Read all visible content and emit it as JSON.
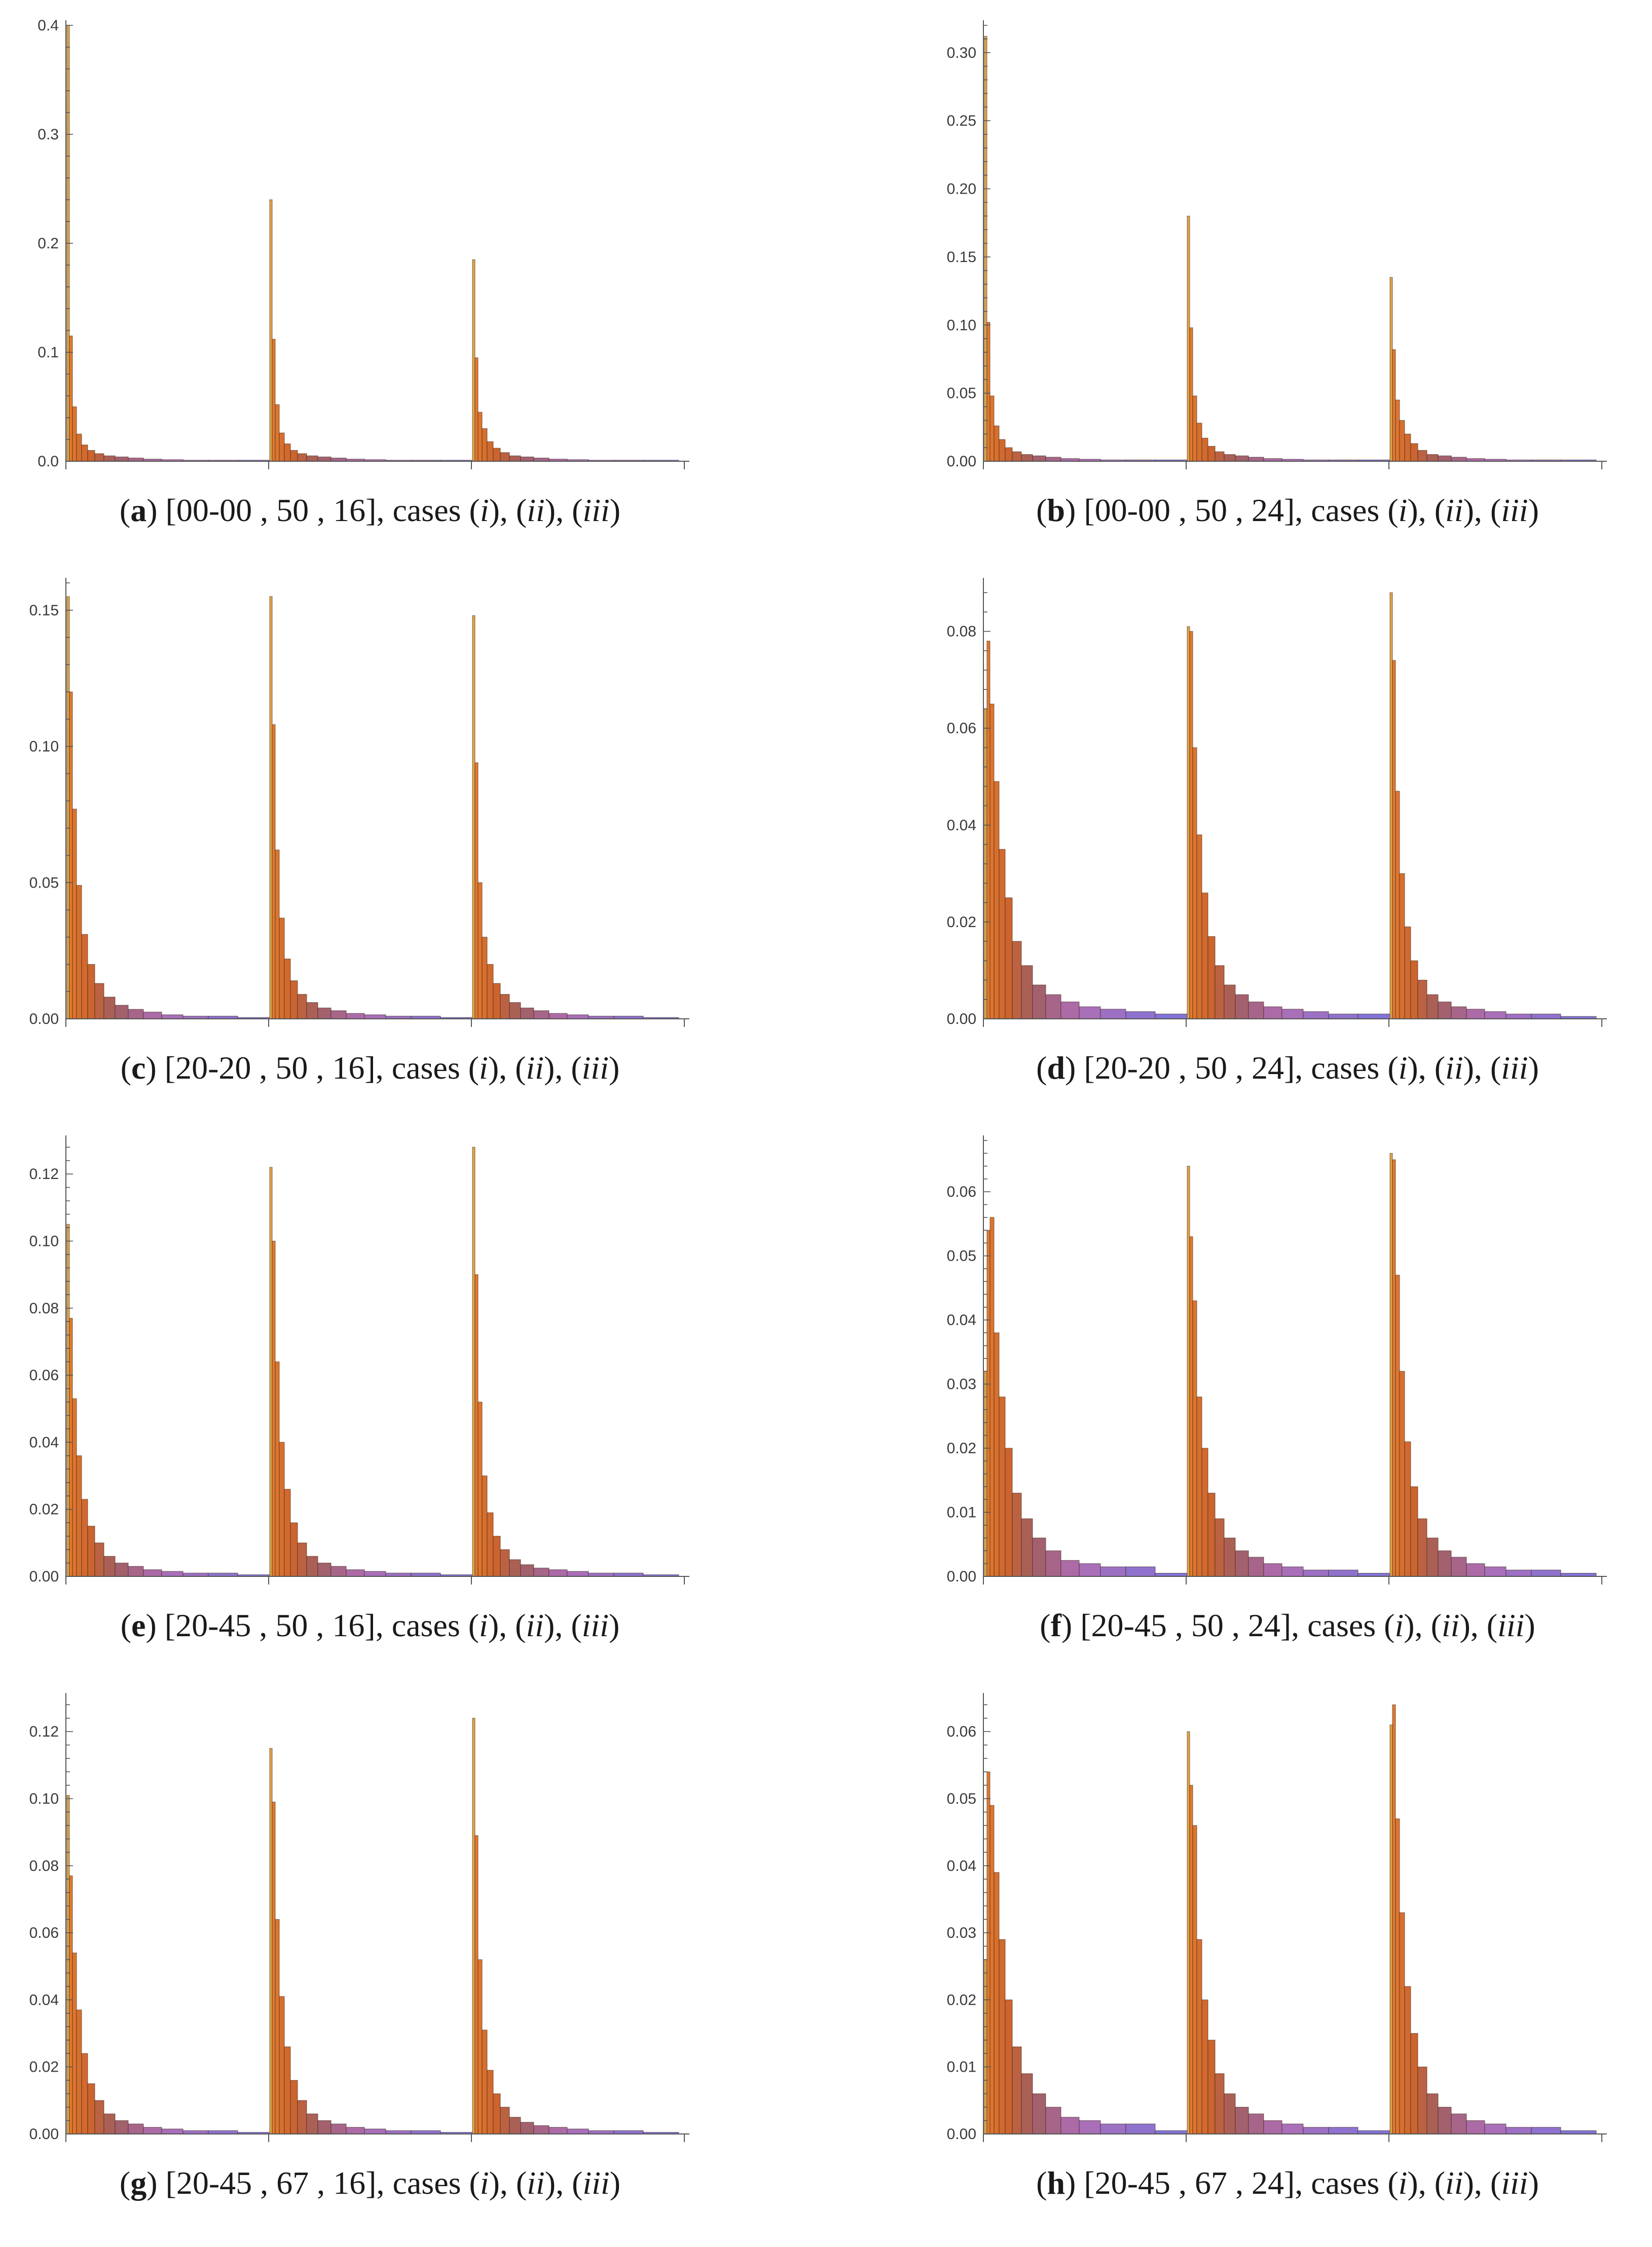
{
  "panels": [
    {
      "letter": "a",
      "spec": "[00-00 , 50 , 16], cases ",
      "cases": [
        "i",
        "ii",
        "iii"
      ],
      "chart_data": {
        "type": "bar",
        "ylim": [
          0,
          0.4
        ],
        "yticks": [
          "0.0",
          "0.1",
          "0.2",
          "0.3",
          "0.4"
        ],
        "ytick_values": [
          0,
          0.1,
          0.2,
          0.3,
          0.4
        ],
        "series": [
          {
            "values": [
              0.4,
              0.115,
              0.05,
              0.025,
              0.015,
              0.01,
              0.007,
              0.005,
              0.004,
              0.003,
              0.002,
              0.0015,
              0.001,
              0.001,
              0.001
            ]
          },
          {
            "values": [
              0.24,
              0.112,
              0.052,
              0.026,
              0.016,
              0.01,
              0.007,
              0.005,
              0.004,
              0.003,
              0.002,
              0.0015,
              0.001,
              0.001,
              0.001
            ]
          },
          {
            "values": [
              0.185,
              0.095,
              0.045,
              0.03,
              0.018,
              0.012,
              0.008,
              0.005,
              0.004,
              0.003,
              0.002,
              0.0015,
              0.001,
              0.001,
              0.001
            ]
          }
        ]
      }
    },
    {
      "letter": "b",
      "spec": "[00-00 , 50 , 24], cases ",
      "cases": [
        "i",
        "ii",
        "iii"
      ],
      "chart_data": {
        "type": "bar",
        "ylim": [
          0,
          0.32
        ],
        "yticks": [
          "0.00",
          "0.05",
          "0.10",
          "0.15",
          "0.20",
          "0.25",
          "0.30"
        ],
        "ytick_values": [
          0,
          0.05,
          0.1,
          0.15,
          0.2,
          0.25,
          0.3
        ],
        "series": [
          {
            "values": [
              0.312,
              0.102,
              0.048,
              0.026,
              0.016,
              0.01,
              0.007,
              0.005,
              0.004,
              0.003,
              0.002,
              0.0015,
              0.001,
              0.001,
              0.001
            ]
          },
          {
            "values": [
              0.18,
              0.098,
              0.048,
              0.028,
              0.017,
              0.011,
              0.007,
              0.005,
              0.004,
              0.003,
              0.002,
              0.0015,
              0.001,
              0.001,
              0.001
            ]
          },
          {
            "values": [
              0.135,
              0.082,
              0.045,
              0.03,
              0.02,
              0.013,
              0.008,
              0.005,
              0.004,
              0.003,
              0.002,
              0.0015,
              0.001,
              0.001,
              0.001
            ]
          }
        ]
      }
    },
    {
      "letter": "c",
      "spec": "[20-20 , 50 , 16], cases ",
      "cases": [
        "i",
        "ii",
        "iii"
      ],
      "chart_data": {
        "type": "bar",
        "ylim": [
          0,
          0.16
        ],
        "yticks": [
          "0.00",
          "0.05",
          "0.10",
          "0.15"
        ],
        "ytick_values": [
          0,
          0.05,
          0.1,
          0.15
        ],
        "series": [
          {
            "values": [
              0.155,
              0.12,
              0.077,
              0.049,
              0.031,
              0.02,
              0.013,
              0.008,
              0.005,
              0.0035,
              0.0025,
              0.0015,
              0.001,
              0.001,
              0.0005
            ]
          },
          {
            "values": [
              0.155,
              0.108,
              0.062,
              0.037,
              0.022,
              0.014,
              0.009,
              0.006,
              0.004,
              0.003,
              0.002,
              0.0015,
              0.001,
              0.001,
              0.0005
            ]
          },
          {
            "values": [
              0.148,
              0.094,
              0.05,
              0.03,
              0.02,
              0.013,
              0.009,
              0.006,
              0.004,
              0.003,
              0.002,
              0.0015,
              0.001,
              0.001,
              0.0005
            ]
          }
        ]
      }
    },
    {
      "letter": "d",
      "spec": "[20-20 , 50 , 24], cases ",
      "cases": [
        "i",
        "ii",
        "iii"
      ],
      "chart_data": {
        "type": "bar",
        "ylim": [
          0,
          0.09
        ],
        "yticks": [
          "0.00",
          "0.02",
          "0.04",
          "0.06",
          "0.08"
        ],
        "ytick_values": [
          0,
          0.02,
          0.04,
          0.06,
          0.08
        ],
        "series": [
          {
            "values": [
              0.064,
              0.078,
              0.065,
              0.049,
              0.035,
              0.025,
              0.016,
              0.011,
              0.007,
              0.005,
              0.0035,
              0.0025,
              0.002,
              0.0015,
              0.001
            ]
          },
          {
            "values": [
              0.081,
              0.08,
              0.056,
              0.038,
              0.026,
              0.017,
              0.011,
              0.007,
              0.005,
              0.0035,
              0.0025,
              0.002,
              0.0015,
              0.001,
              0.001
            ]
          },
          {
            "values": [
              0.088,
              0.074,
              0.047,
              0.03,
              0.019,
              0.012,
              0.008,
              0.005,
              0.0035,
              0.0025,
              0.002,
              0.0015,
              0.001,
              0.001,
              0.0005
            ]
          }
        ]
      }
    },
    {
      "letter": "e",
      "spec": "[20-45 , 50 , 16], cases ",
      "cases": [
        "i",
        "ii",
        "iii"
      ],
      "chart_data": {
        "type": "bar",
        "ylim": [
          0,
          0.13
        ],
        "yticks": [
          "0.00",
          "0.02",
          "0.04",
          "0.06",
          "0.08",
          "0.10",
          "0.12"
        ],
        "ytick_values": [
          0,
          0.02,
          0.04,
          0.06,
          0.08,
          0.1,
          0.12
        ],
        "series": [
          {
            "values": [
              0.105,
              0.077,
              0.053,
              0.036,
              0.023,
              0.015,
              0.01,
              0.006,
              0.004,
              0.003,
              0.002,
              0.0015,
              0.001,
              0.001,
              0.0005
            ]
          },
          {
            "values": [
              0.122,
              0.1,
              0.064,
              0.04,
              0.026,
              0.016,
              0.01,
              0.006,
              0.004,
              0.003,
              0.002,
              0.0015,
              0.001,
              0.001,
              0.0005
            ]
          },
          {
            "values": [
              0.128,
              0.09,
              0.052,
              0.03,
              0.019,
              0.012,
              0.008,
              0.005,
              0.0035,
              0.0025,
              0.002,
              0.0015,
              0.001,
              0.001,
              0.0005
            ]
          }
        ]
      }
    },
    {
      "letter": "f",
      "spec": "[20-45 , 50 , 24], cases ",
      "cases": [
        "i",
        "ii",
        "iii"
      ],
      "chart_data": {
        "type": "bar",
        "ylim": [
          0,
          0.068
        ],
        "yticks": [
          "0.00",
          "0.01",
          "0.02",
          "0.03",
          "0.04",
          "0.05",
          "0.06"
        ],
        "ytick_values": [
          0,
          0.01,
          0.02,
          0.03,
          0.04,
          0.05,
          0.06
        ],
        "series": [
          {
            "values": [
              0.032,
              0.054,
              0.056,
              0.038,
              0.028,
              0.02,
              0.013,
              0.009,
              0.006,
              0.004,
              0.0025,
              0.002,
              0.0015,
              0.0015,
              0.0005
            ]
          },
          {
            "values": [
              0.064,
              0.053,
              0.043,
              0.028,
              0.02,
              0.013,
              0.009,
              0.006,
              0.004,
              0.003,
              0.002,
              0.0015,
              0.001,
              0.001,
              0.0005
            ]
          },
          {
            "values": [
              0.066,
              0.065,
              0.047,
              0.032,
              0.021,
              0.014,
              0.009,
              0.006,
              0.004,
              0.003,
              0.002,
              0.0015,
              0.001,
              0.001,
              0.0005
            ]
          }
        ]
      }
    },
    {
      "letter": "g",
      "spec": "[20-45 , 67 , 16], cases ",
      "cases": [
        "i",
        "ii",
        "iii"
      ],
      "chart_data": {
        "type": "bar",
        "ylim": [
          0,
          0.13
        ],
        "yticks": [
          "0.00",
          "0.02",
          "0.04",
          "0.06",
          "0.08",
          "0.10",
          "0.12"
        ],
        "ytick_values": [
          0,
          0.02,
          0.04,
          0.06,
          0.08,
          0.1,
          0.12
        ],
        "series": [
          {
            "values": [
              0.101,
              0.077,
              0.054,
              0.037,
              0.024,
              0.015,
              0.01,
              0.006,
              0.004,
              0.003,
              0.002,
              0.0015,
              0.001,
              0.001,
              0.0005
            ]
          },
          {
            "values": [
              0.115,
              0.099,
              0.064,
              0.041,
              0.026,
              0.016,
              0.01,
              0.006,
              0.004,
              0.003,
              0.002,
              0.0015,
              0.001,
              0.001,
              0.0005
            ]
          },
          {
            "values": [
              0.124,
              0.089,
              0.052,
              0.031,
              0.019,
              0.012,
              0.008,
              0.005,
              0.0035,
              0.0025,
              0.002,
              0.0015,
              0.001,
              0.001,
              0.0005
            ]
          }
        ]
      }
    },
    {
      "letter": "h",
      "spec": "[20-45 , 67 , 24], cases ",
      "cases": [
        "i",
        "ii",
        "iii"
      ],
      "chart_data": {
        "type": "bar",
        "ylim": [
          0,
          0.065
        ],
        "yticks": [
          "0.00",
          "0.01",
          "0.02",
          "0.03",
          "0.04",
          "0.05",
          "0.06"
        ],
        "ytick_values": [
          0,
          0.01,
          0.02,
          0.03,
          0.04,
          0.05,
          0.06
        ],
        "series": [
          {
            "values": [
              0.026,
              0.054,
              0.049,
              0.039,
              0.029,
              0.02,
              0.013,
              0.009,
              0.006,
              0.004,
              0.0025,
              0.002,
              0.0015,
              0.0015,
              0.0005
            ]
          },
          {
            "values": [
              0.06,
              0.052,
              0.046,
              0.029,
              0.02,
              0.014,
              0.009,
              0.006,
              0.004,
              0.003,
              0.002,
              0.0015,
              0.001,
              0.001,
              0.0005
            ]
          },
          {
            "values": [
              0.061,
              0.064,
              0.047,
              0.033,
              0.022,
              0.015,
              0.01,
              0.006,
              0.004,
              0.003,
              0.002,
              0.0015,
              0.001,
              0.001,
              0.0005
            ]
          }
        ]
      }
    }
  ]
}
